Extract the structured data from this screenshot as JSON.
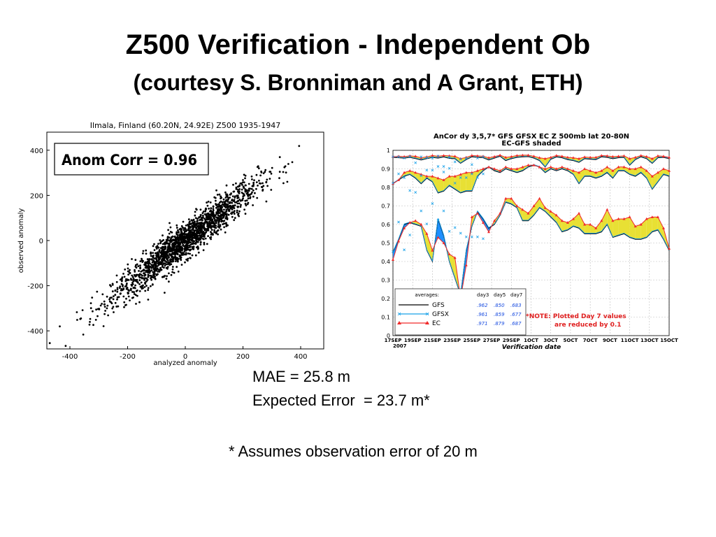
{
  "slide": {
    "title": "Z500 Verification - Independent Ob",
    "subtitle": "(courtesy S. Bronniman and A Grant, ETH)",
    "mae": "MAE = 25.8 m",
    "expected_error": "Expected Error  = 23.7 m*",
    "footnote": "* Assumes observation error of 20 m"
  },
  "chart_data": [
    {
      "type": "scatter",
      "title": "Ilmala, Finland (60.20N, 24.92E) Z500 1935-1947",
      "xlabel": "analyzed anomaly",
      "ylabel": "observed anomaly",
      "xlim": [
        -480,
        480
      ],
      "ylim": [
        -480,
        480
      ],
      "xticks": [
        "-400",
        "-200",
        "0",
        "200",
        "400"
      ],
      "yticks": [
        "400",
        "200",
        "0",
        "-200",
        "-400"
      ],
      "annotation": "Anom Corr = 0.96",
      "correlation": 0.96,
      "point_color": "#000000",
      "grid": false
    },
    {
      "type": "line",
      "title": "AnCor dy 3,5,7*  GFS  GFSX  EC    Z 500mb lat 20-80N",
      "subtitle": "EC-GFS shaded",
      "xlabel": "Verification date",
      "year_label": "2007",
      "ylim": [
        0,
        1
      ],
      "yticks": [
        "0",
        "0.1",
        "0.2",
        "0.3",
        "0.4",
        "0.5",
        "0.6",
        "0.7",
        "0.8",
        "0.9",
        "1"
      ],
      "xticks": [
        "17SEP",
        "19SEP",
        "21SEP",
        "23SEP",
        "25SEP",
        "27SEP",
        "29SEP",
        "1OCT",
        "3OCT",
        "5OCT",
        "7OCT",
        "9OCT",
        "11OCT",
        "13OCT",
        "15OCT"
      ],
      "grid": true,
      "series_colors": {
        "GFS": "#000000",
        "GFSX": "#17a0e8",
        "EC": "#f02a2a",
        "EC_better": "#e8e034",
        "GFS_better": "#1e90ff"
      },
      "legend": {
        "header": [
          "averages:",
          "day3",
          "day5",
          "day7"
        ],
        "rows": [
          {
            "name": "GFS",
            "day3": ".962",
            "day5": ".850",
            "day7": ".683"
          },
          {
            "name": "GFSX",
            "day3": ".961",
            "day5": ".859",
            "day7": ".677"
          },
          {
            "name": "EC",
            "day3": ".971",
            "day5": ".879",
            "day7": ".687"
          }
        ]
      },
      "note_line1": "*NOTE: Plotted Day 7 values",
      "note_line2": "are reduced by 0.1",
      "day3": {
        "GFS": [
          0.962,
          0.96,
          0.958,
          0.962,
          0.956,
          0.948,
          0.955,
          0.962,
          0.958,
          0.964,
          0.957,
          0.955,
          0.93,
          0.95,
          0.965,
          0.962,
          0.96,
          0.948,
          0.958,
          0.968,
          0.945,
          0.955,
          0.962,
          0.965,
          0.966,
          0.958,
          0.945,
          0.91,
          0.952,
          0.964,
          0.96,
          0.95,
          0.945,
          0.935,
          0.955,
          0.952,
          0.95,
          0.965,
          0.962,
          0.955,
          0.96,
          0.962,
          0.92,
          0.95,
          0.965,
          0.955,
          0.93,
          0.96,
          0.962,
          0.955
        ],
        "EC": [
          0.965,
          0.968,
          0.966,
          0.97,
          0.968,
          0.96,
          0.965,
          0.972,
          0.968,
          0.972,
          0.97,
          0.968,
          0.955,
          0.962,
          0.972,
          0.97,
          0.968,
          0.96,
          0.966,
          0.974,
          0.962,
          0.966,
          0.972,
          0.974,
          0.974,
          0.968,
          0.96,
          0.955,
          0.962,
          0.972,
          0.968,
          0.962,
          0.96,
          0.955,
          0.964,
          0.962,
          0.962,
          0.972,
          0.97,
          0.966,
          0.968,
          0.97,
          0.955,
          0.962,
          0.972,
          0.966,
          0.955,
          0.97,
          0.968,
          0.962
        ]
      },
      "day5": {
        "GFS": [
          0.82,
          0.84,
          0.86,
          0.87,
          0.85,
          0.82,
          0.85,
          0.83,
          0.77,
          0.78,
          0.81,
          0.79,
          0.77,
          0.78,
          0.78,
          0.86,
          0.89,
          0.91,
          0.89,
          0.88,
          0.9,
          0.89,
          0.88,
          0.89,
          0.91,
          0.92,
          0.91,
          0.88,
          0.9,
          0.89,
          0.9,
          0.89,
          0.87,
          0.82,
          0.86,
          0.86,
          0.85,
          0.86,
          0.88,
          0.85,
          0.89,
          0.89,
          0.87,
          0.86,
          0.88,
          0.85,
          0.79,
          0.83,
          0.87,
          0.86
        ],
        "EC": [
          0.82,
          0.84,
          0.88,
          0.89,
          0.88,
          0.87,
          0.86,
          0.86,
          0.85,
          0.84,
          0.86,
          0.86,
          0.87,
          0.88,
          0.88,
          0.89,
          0.9,
          0.91,
          0.9,
          0.89,
          0.91,
          0.9,
          0.9,
          0.91,
          0.92,
          0.92,
          0.91,
          0.9,
          0.91,
          0.9,
          0.91,
          0.9,
          0.89,
          0.88,
          0.9,
          0.89,
          0.88,
          0.89,
          0.91,
          0.89,
          0.91,
          0.91,
          0.9,
          0.9,
          0.91,
          0.89,
          0.86,
          0.88,
          0.9,
          0.89
        ]
      },
      "day7": {
        "GFS": [
          0.45,
          0.52,
          0.6,
          0.61,
          0.6,
          0.59,
          0.46,
          0.4,
          0.63,
          0.54,
          0.4,
          0.31,
          0.22,
          0.46,
          0.59,
          0.67,
          0.63,
          0.58,
          0.6,
          0.65,
          0.72,
          0.71,
          0.69,
          0.62,
          0.62,
          0.65,
          0.69,
          0.67,
          0.64,
          0.61,
          0.56,
          0.57,
          0.59,
          0.58,
          0.55,
          0.55,
          0.55,
          0.56,
          0.6,
          0.53,
          0.54,
          0.55,
          0.53,
          0.52,
          0.52,
          0.53,
          0.56,
          0.57,
          0.52,
          0.46
        ],
        "EC": [
          0.41,
          0.51,
          0.58,
          0.61,
          0.62,
          0.6,
          0.55,
          0.46,
          0.53,
          0.5,
          0.44,
          0.42,
          0.2,
          0.38,
          0.64,
          0.66,
          0.61,
          0.56,
          0.62,
          0.66,
          0.74,
          0.74,
          0.7,
          0.68,
          0.66,
          0.7,
          0.74,
          0.69,
          0.67,
          0.65,
          0.62,
          0.61,
          0.63,
          0.66,
          0.6,
          0.6,
          0.58,
          0.62,
          0.68,
          0.62,
          0.63,
          0.63,
          0.64,
          0.59,
          0.6,
          0.63,
          0.64,
          0.64,
          0.58,
          0.47
        ]
      }
    }
  ]
}
